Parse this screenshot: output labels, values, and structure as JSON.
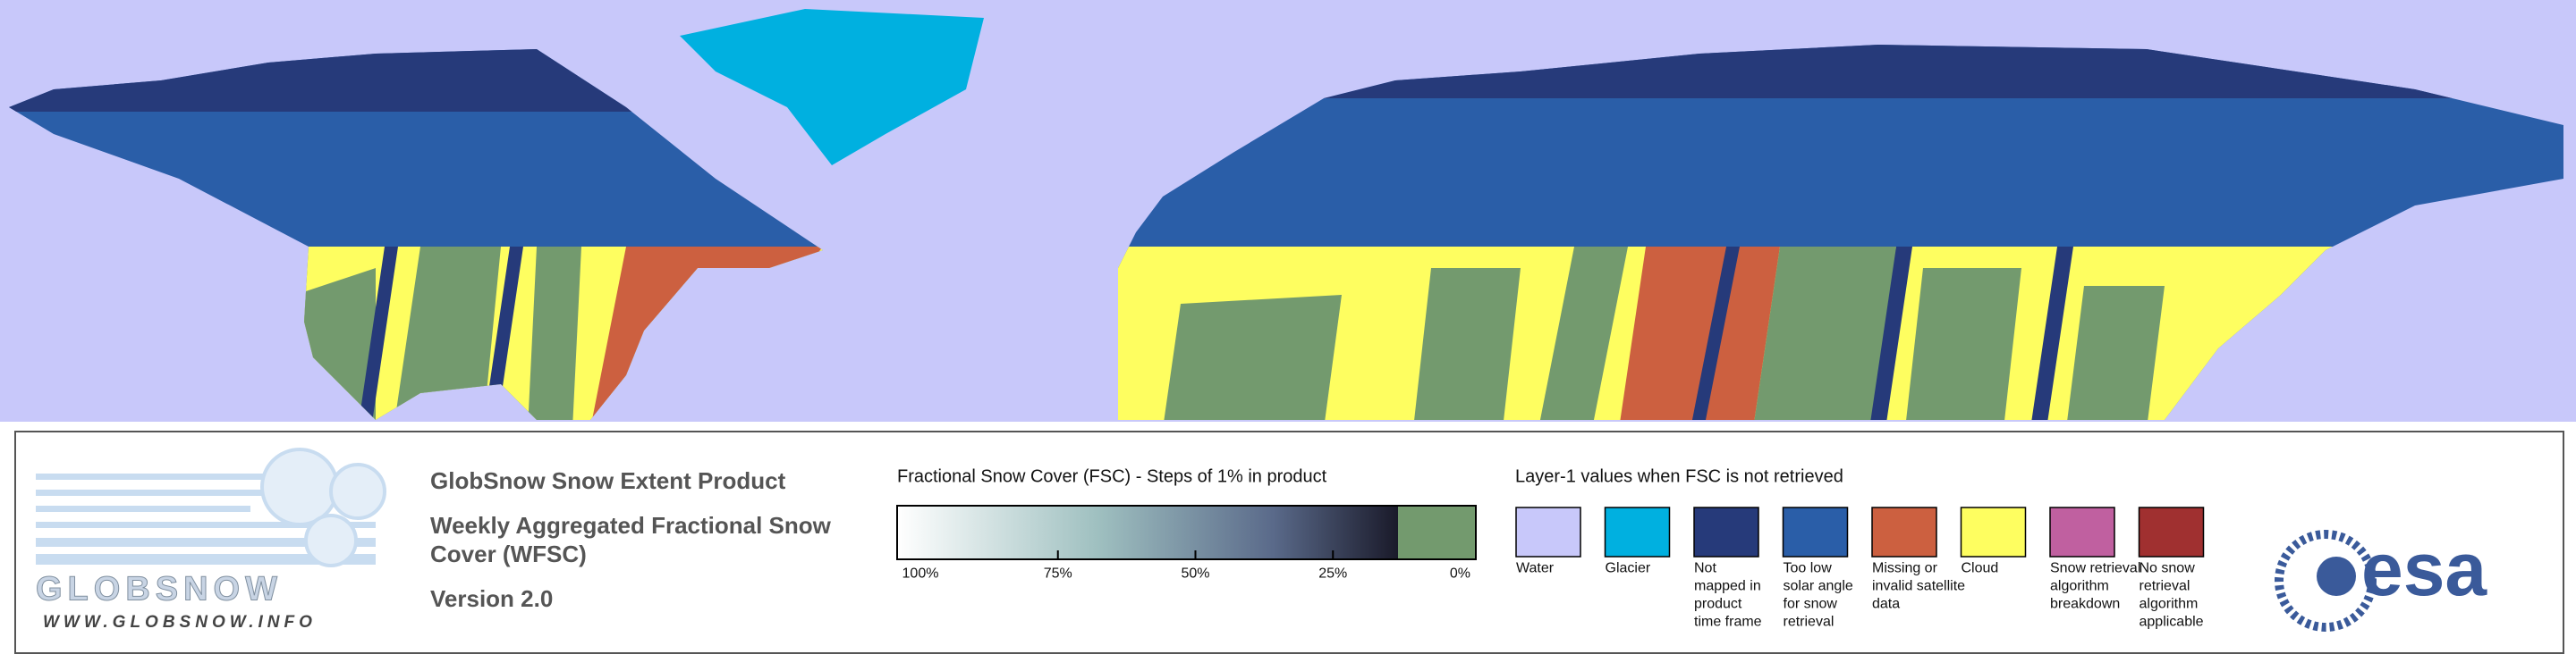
{
  "header": {
    "logo_text": "GLOBSNOW",
    "logo_url": "WWW.GLOBSNOW.INFO",
    "title": "GlobSnow Snow Extent Product",
    "subtitle_lines": [
      "Weekly Aggregated Fractional Snow",
      "Cover (WFSC)"
    ],
    "version": "Version 2.0"
  },
  "colorbar": {
    "title": "Fractional Snow Cover (FSC) - Steps of 1% in product",
    "labels": [
      "100%",
      "75%",
      "50%",
      "25%",
      "0%"
    ]
  },
  "layer_legend": {
    "title": "Layer-1 values when FSC is not retrieved",
    "items": [
      {
        "color": "#c8c8fa",
        "lines": [
          "Water"
        ]
      },
      {
        "color": "#00b0e0",
        "lines": [
          "Glacier"
        ]
      },
      {
        "color": "#263a7a",
        "lines": [
          "Not",
          "mapped in",
          "product",
          "time frame"
        ]
      },
      {
        "color": "#2a5ea8",
        "lines": [
          "Too low",
          "solar angle",
          "for snow",
          "retrieval"
        ]
      },
      {
        "color": "#cc6040",
        "lines": [
          "Missing or",
          "invalid satellite",
          "data"
        ]
      },
      {
        "color": "#fefe60",
        "lines": [
          "Cloud"
        ]
      },
      {
        "color": "#c060a0",
        "lines": [
          "Snow retrieval",
          "algorithm",
          "breakdown"
        ]
      },
      {
        "color": "#a03030",
        "lines": [
          "No snow",
          "retrieval",
          "algorithm",
          "applicable"
        ]
      }
    ]
  },
  "agency": "esa"
}
